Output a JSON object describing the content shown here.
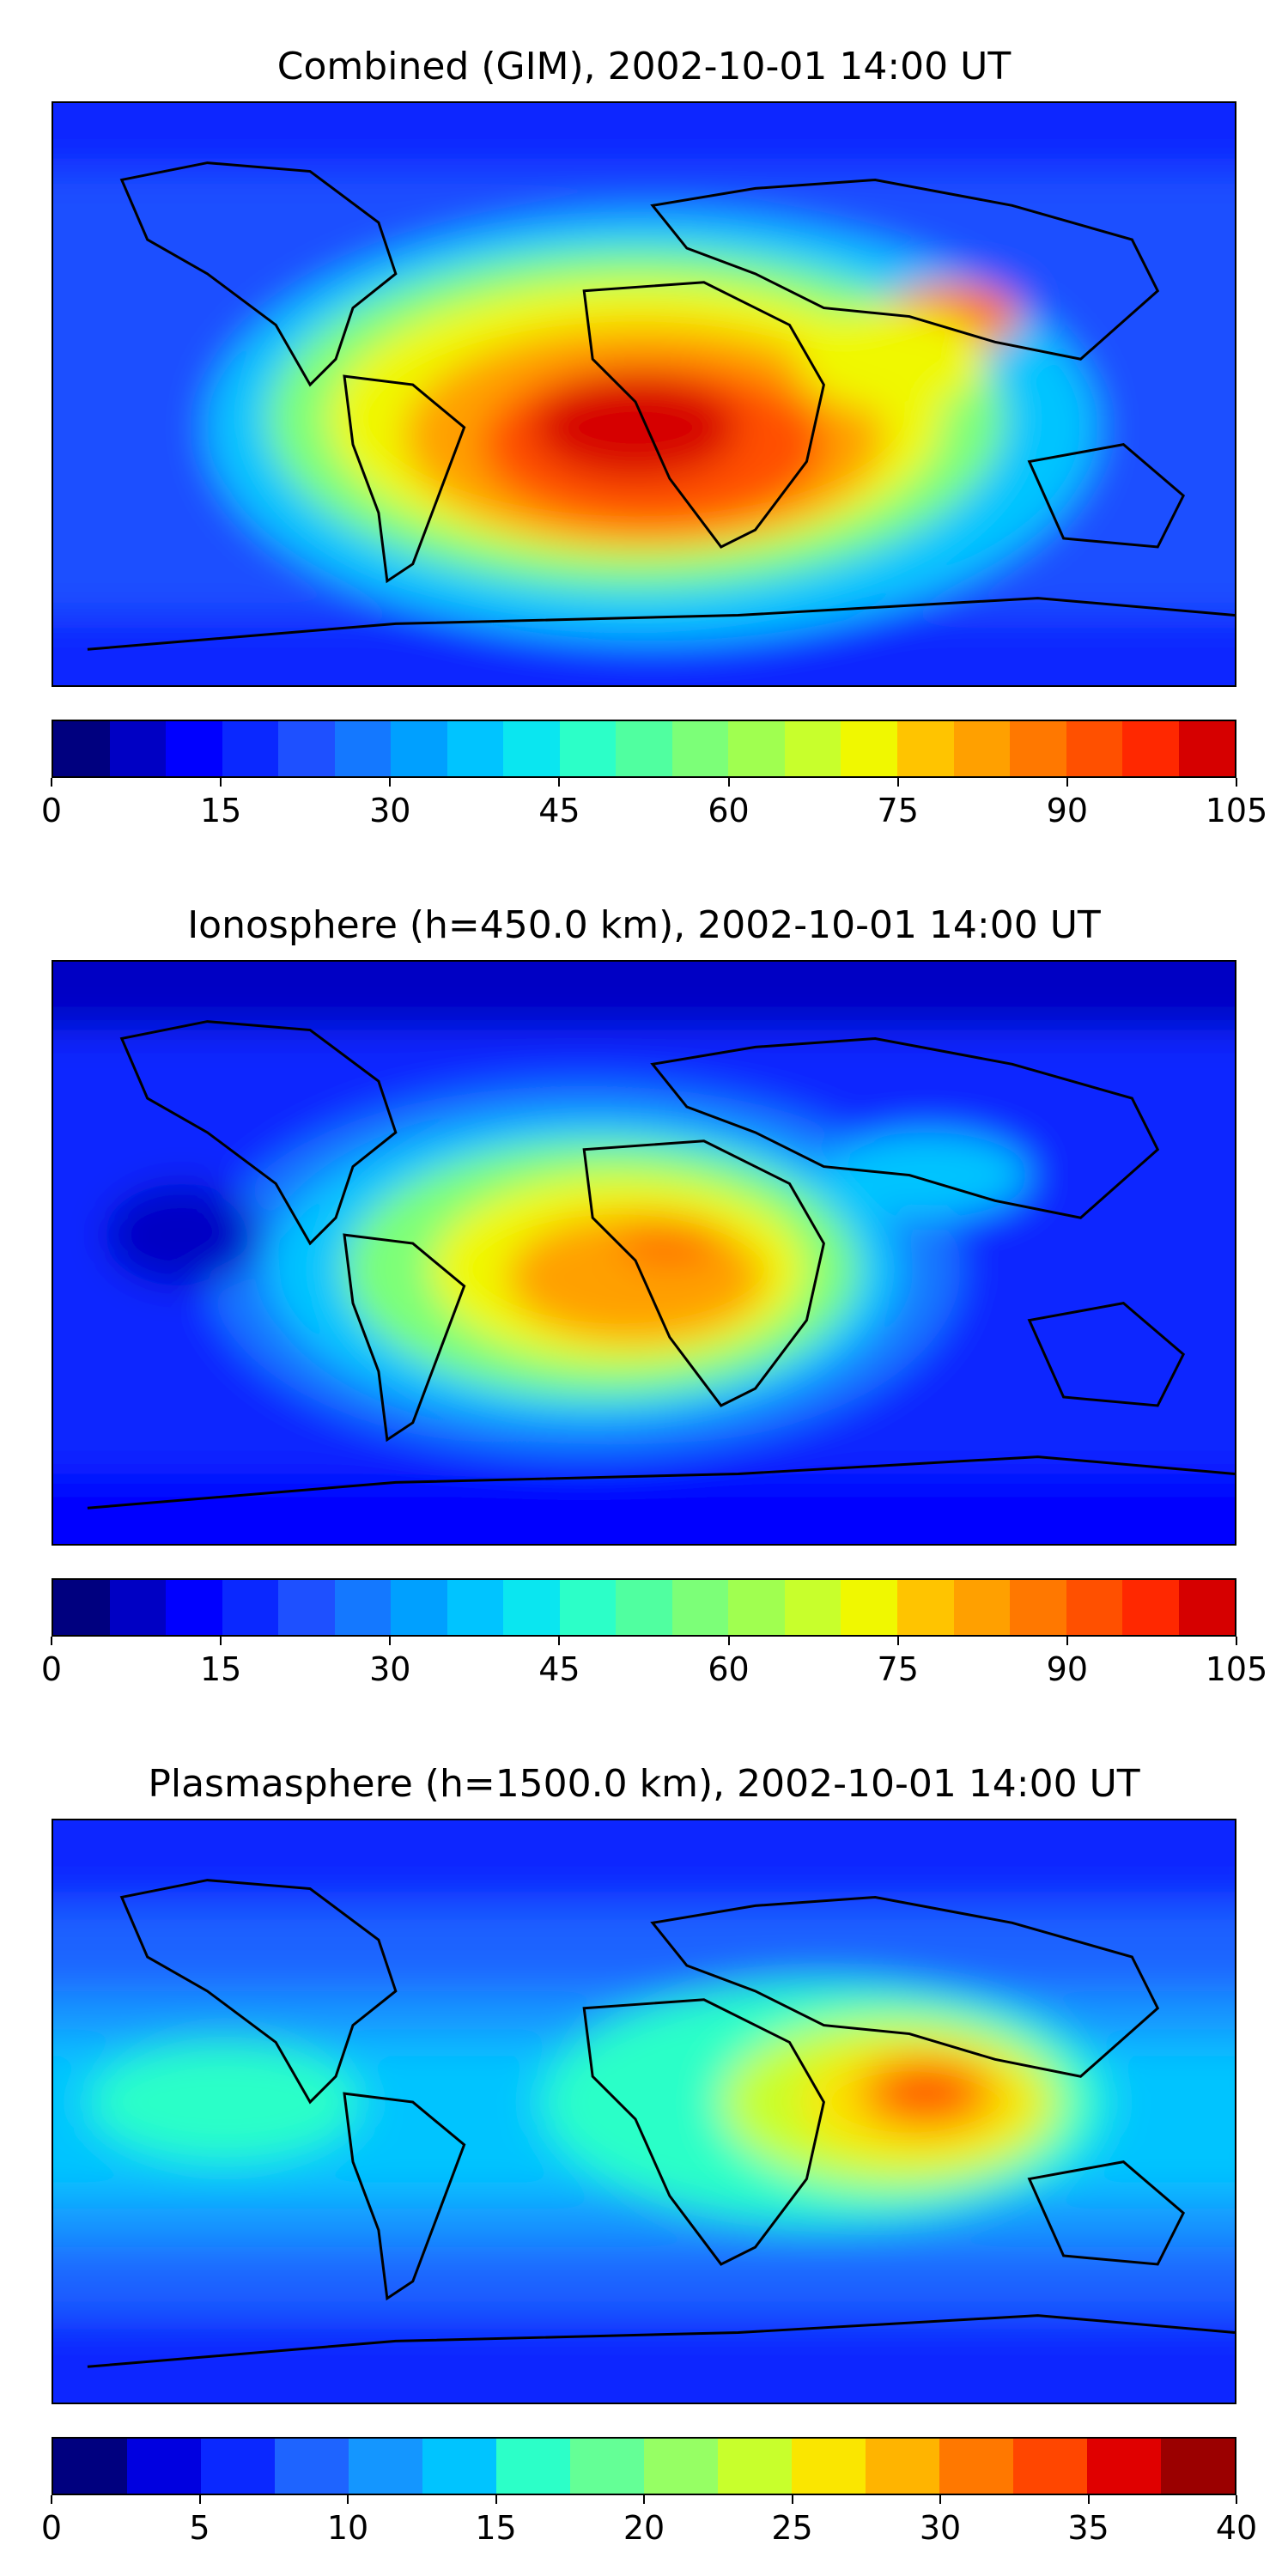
{
  "panels": [
    {
      "title": "Combined (GIM), 2002-10-01 14:00 UT",
      "colorbar": {
        "min": 0,
        "max": 105,
        "step": 5,
        "ticks": [
          "0",
          "15",
          "30",
          "45",
          "60",
          "75",
          "90",
          "105"
        ],
        "colors": [
          "#00007f",
          "#0000c4",
          "#0000ff",
          "#0a28ff",
          "#1e50ff",
          "#1478ff",
          "#00a0ff",
          "#00c4ff",
          "#0ae6f0",
          "#2cffc8",
          "#50ffa0",
          "#7cff78",
          "#a0ff50",
          "#c8ff2c",
          "#f0f800",
          "#ffc400",
          "#ffa000",
          "#ff7800",
          "#ff5000",
          "#ff2800",
          "#d60000",
          "#8b0000"
        ]
      }
    },
    {
      "title": "Ionosphere  (h=450.0 km), 2002-10-01 14:00 UT",
      "colorbar": {
        "min": 0,
        "max": 105,
        "step": 5,
        "ticks": [
          "0",
          "15",
          "30",
          "45",
          "60",
          "75",
          "90",
          "105"
        ],
        "colors": [
          "#00007f",
          "#0000c4",
          "#0000ff",
          "#0a28ff",
          "#1e50ff",
          "#1478ff",
          "#00a0ff",
          "#00c4ff",
          "#0ae6f0",
          "#2cffc8",
          "#50ffa0",
          "#7cff78",
          "#a0ff50",
          "#c8ff2c",
          "#f0f800",
          "#ffc400",
          "#ffa000",
          "#ff7800",
          "#ff5000",
          "#ff2800",
          "#d60000",
          "#8b0000"
        ]
      }
    },
    {
      "title": "Plasmasphere (h=1500.0 km), 2002-10-01 14:00 UT",
      "colorbar": {
        "min": 0,
        "max": 40,
        "step": 2.5,
        "ticks": [
          "0",
          "5",
          "10",
          "15",
          "20",
          "25",
          "30",
          "35",
          "40"
        ],
        "colors": [
          "#00007f",
          "#0000e0",
          "#0a28ff",
          "#1e64ff",
          "#1496ff",
          "#00c4ff",
          "#2cffc8",
          "#64ff96",
          "#96ff64",
          "#c8ff2c",
          "#fae600",
          "#ffb400",
          "#ff7800",
          "#ff4600",
          "#e00000",
          "#9b0000"
        ]
      }
    }
  ]
}
